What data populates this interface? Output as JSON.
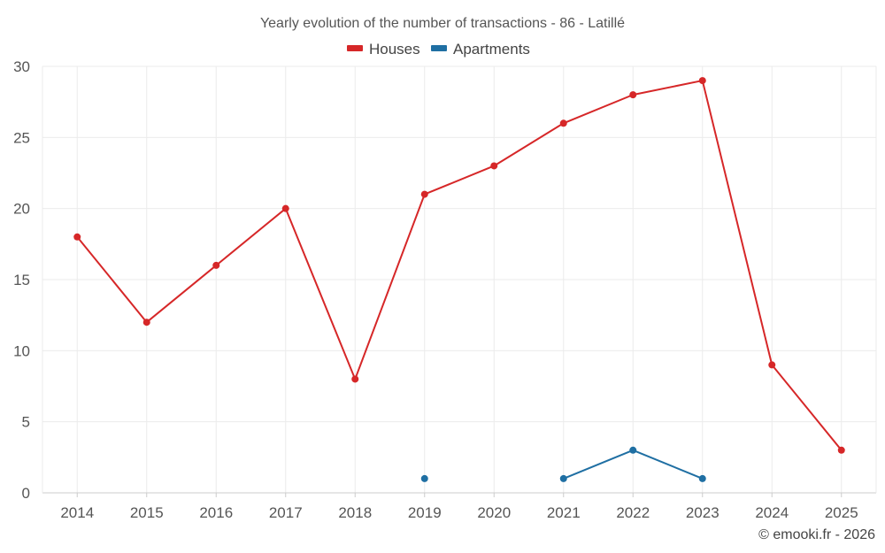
{
  "chart_data": {
    "type": "line",
    "title": "Yearly evolution of the number of transactions - 86 - Latillé",
    "categories": [
      "2014",
      "2015",
      "2016",
      "2017",
      "2018",
      "2019",
      "2020",
      "2021",
      "2022",
      "2023",
      "2024",
      "2025"
    ],
    "ylim": [
      0,
      30
    ],
    "yticks": [
      0,
      5,
      10,
      15,
      20,
      25,
      30
    ],
    "grid": true,
    "legend_position": "top-center",
    "series": [
      {
        "name": "Houses",
        "color": "#d62728",
        "values": [
          18,
          12,
          16,
          20,
          8,
          21,
          23,
          26,
          28,
          29,
          9,
          3
        ]
      },
      {
        "name": "Apartments",
        "color": "#1f6fa3",
        "values": [
          null,
          null,
          null,
          null,
          null,
          1,
          null,
          1,
          3,
          1,
          null,
          null
        ]
      }
    ],
    "xlabel": "",
    "ylabel": ""
  },
  "credit": "© emooki.fr - 2026"
}
